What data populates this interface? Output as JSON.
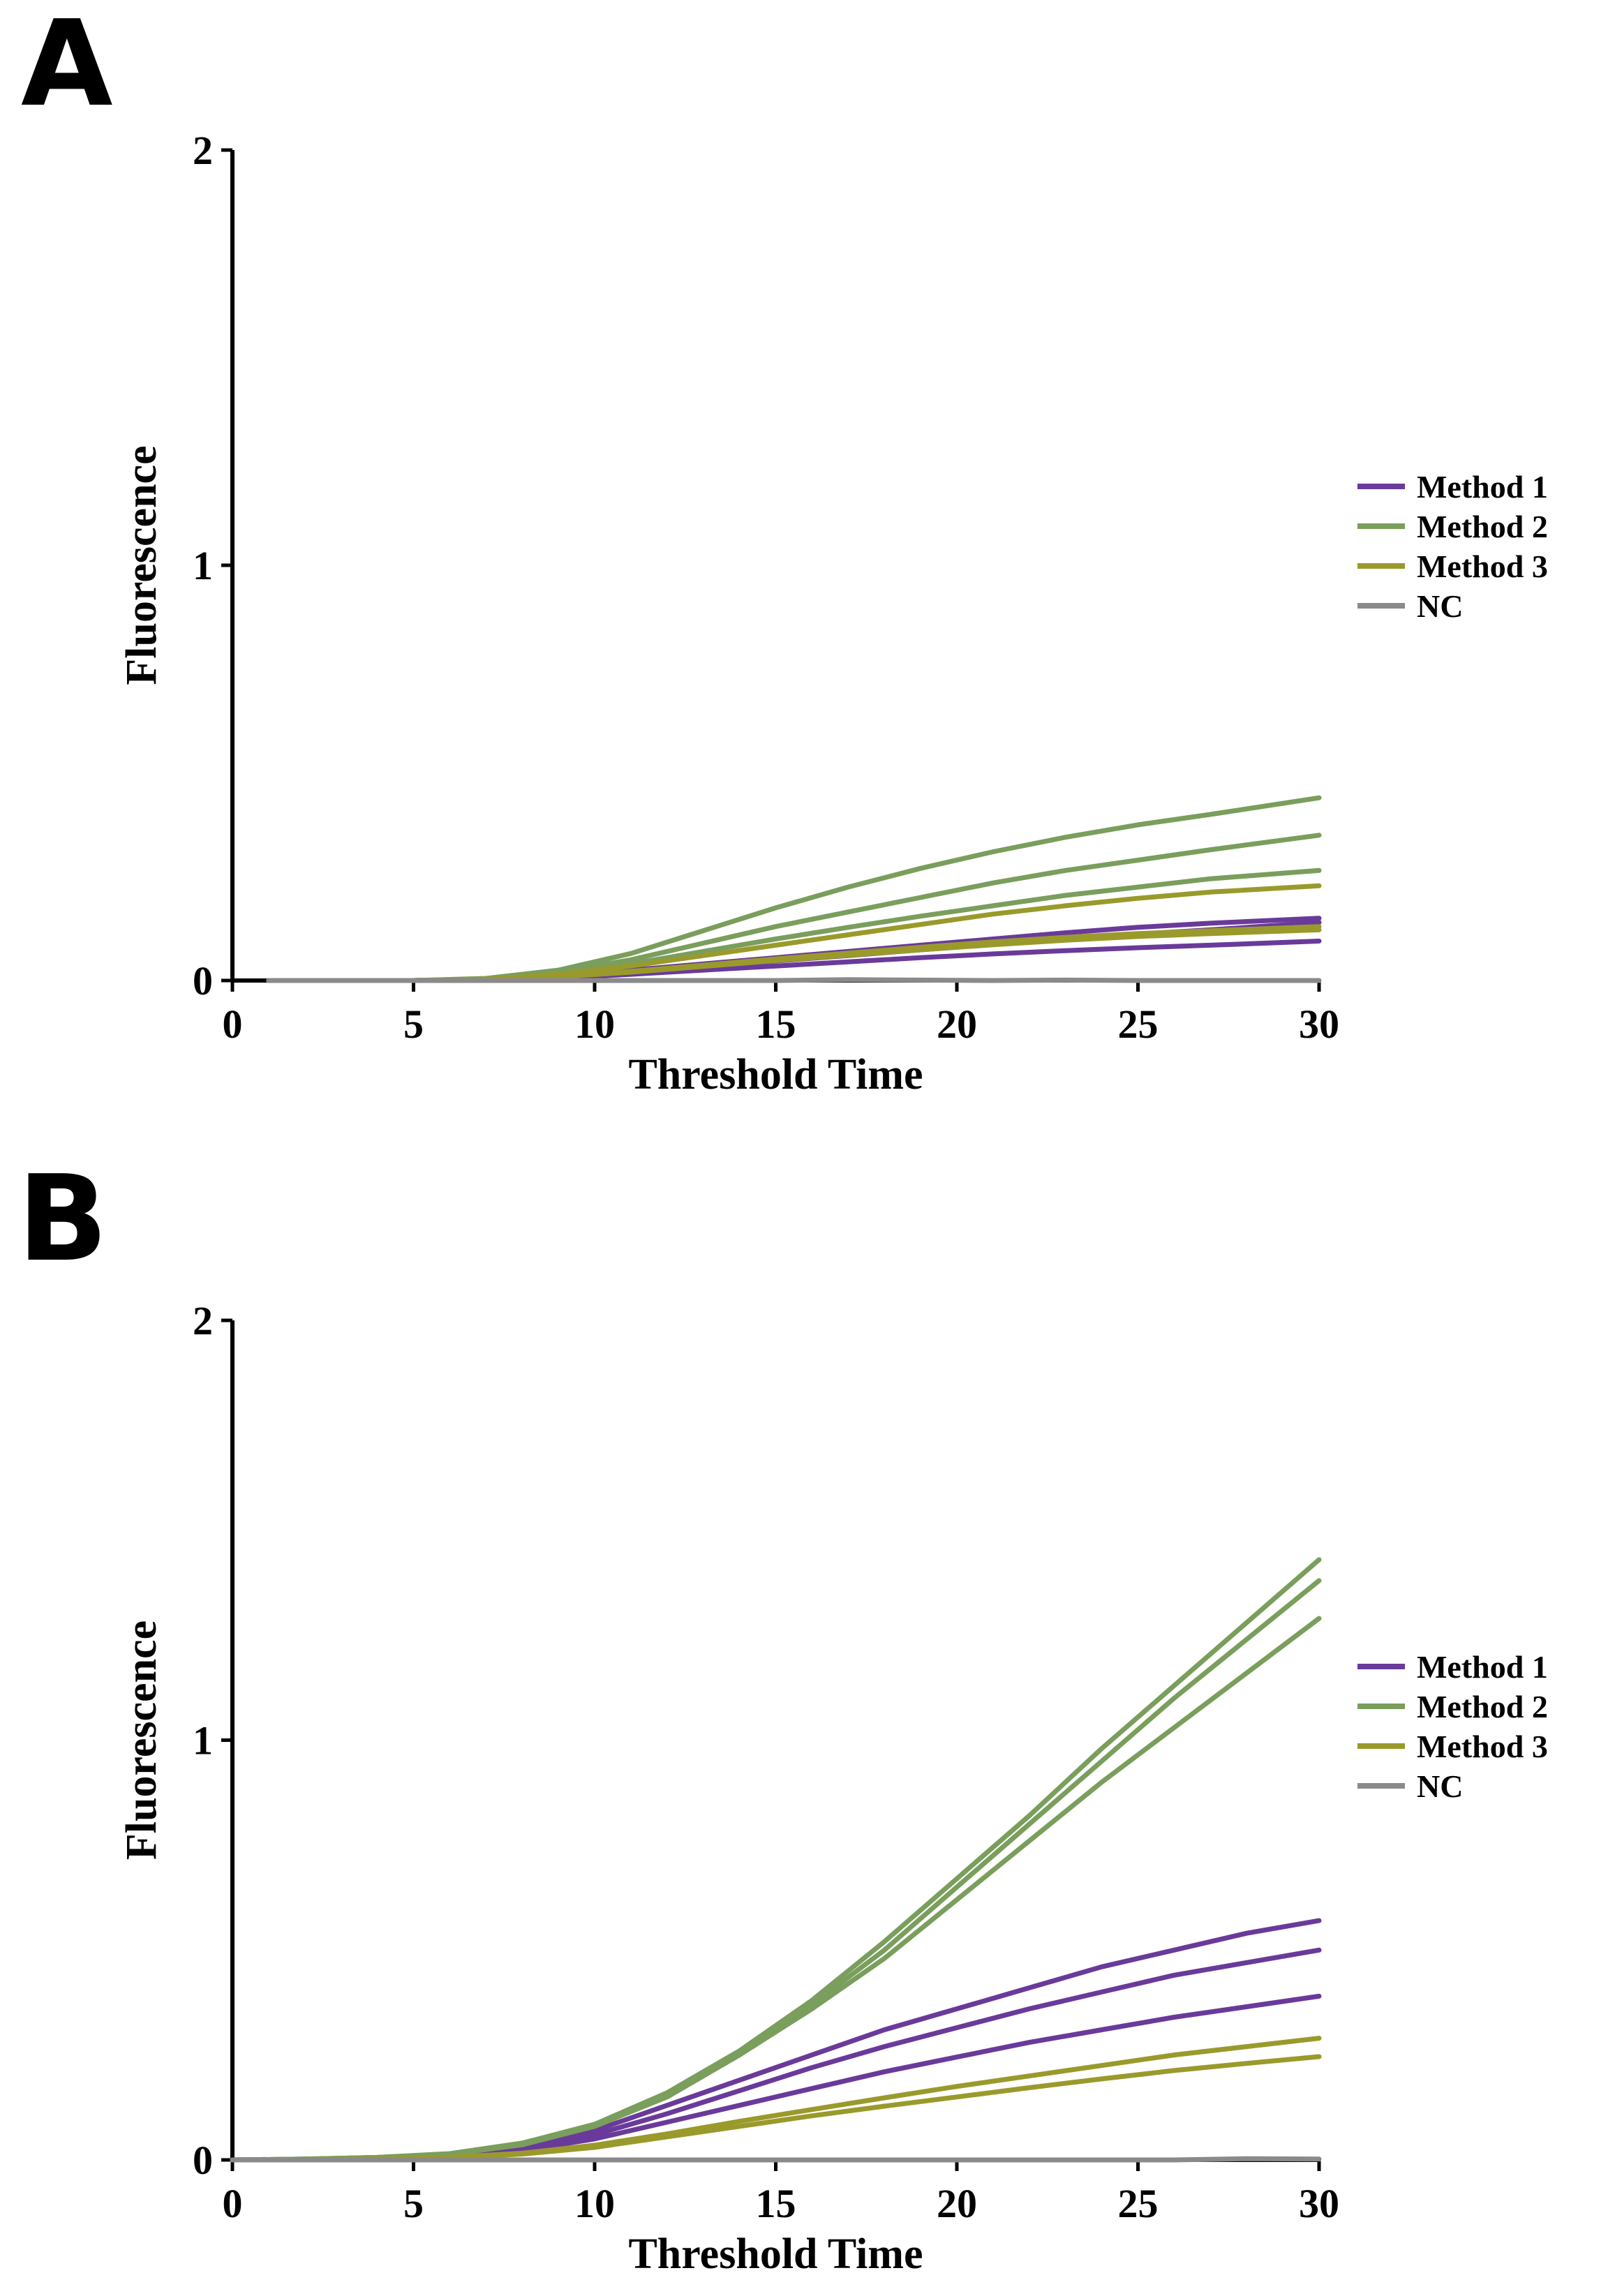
{
  "chart_data": [
    {
      "panel_label": "A",
      "type": "line",
      "xlabel": "Threshold Time",
      "ylabel": "Fluorescence",
      "xlim": [
        0,
        30
      ],
      "ylim": [
        0,
        2
      ],
      "xticks": [
        "0",
        "5",
        "10",
        "15",
        "20",
        "25",
        "30"
      ],
      "yticks": [
        "0",
        "1",
        "2"
      ],
      "legend": [
        {
          "name": "Method 1",
          "color": "#6a3a9a"
        },
        {
          "name": "Method 2",
          "color": "#7a9e5c"
        },
        {
          "name": "Method 3",
          "color": "#9a9a2c"
        },
        {
          "name": "NC",
          "color": "#8a8a8a"
        }
      ],
      "x": [
        1,
        3,
        5,
        7,
        9,
        11,
        13,
        15,
        17,
        19,
        21,
        23,
        25,
        27,
        30
      ],
      "series": [
        {
          "name": "Method 1",
          "color": "#6a3a9a",
          "values": [
            0,
            0,
            0,
            0.002,
            0.01,
            0.025,
            0.04,
            0.055,
            0.07,
            0.085,
            0.1,
            0.115,
            0.128,
            0.138,
            0.15
          ]
        },
        {
          "name": "Method 1",
          "color": "#6a3a9a",
          "values": [
            0,
            0,
            0,
            0.002,
            0.008,
            0.02,
            0.033,
            0.047,
            0.06,
            0.074,
            0.087,
            0.1,
            0.112,
            0.122,
            0.14
          ]
        },
        {
          "name": "Method 1",
          "color": "#6a3a9a",
          "values": [
            0,
            0,
            0,
            0.001,
            0.006,
            0.015,
            0.025,
            0.035,
            0.045,
            0.055,
            0.064,
            0.072,
            0.079,
            0.085,
            0.095
          ]
        },
        {
          "name": "Method 2",
          "color": "#7a9e5c",
          "values": [
            0,
            0,
            0,
            0.005,
            0.025,
            0.065,
            0.12,
            0.175,
            0.225,
            0.27,
            0.31,
            0.345,
            0.375,
            0.4,
            0.44
          ]
        },
        {
          "name": "Method 2",
          "color": "#7a9e5c",
          "values": [
            0,
            0,
            0,
            0.004,
            0.02,
            0.05,
            0.09,
            0.13,
            0.165,
            0.2,
            0.235,
            0.265,
            0.29,
            0.315,
            0.35
          ]
        },
        {
          "name": "Method 2",
          "color": "#7a9e5c",
          "values": [
            0,
            0,
            0,
            0.003,
            0.015,
            0.04,
            0.07,
            0.1,
            0.128,
            0.155,
            0.18,
            0.205,
            0.225,
            0.245,
            0.265
          ]
        },
        {
          "name": "Method 3",
          "color": "#9a9a2c",
          "values": [
            0,
            0,
            0,
            0.003,
            0.015,
            0.035,
            0.06,
            0.085,
            0.11,
            0.135,
            0.16,
            0.18,
            0.198,
            0.213,
            0.228
          ]
        },
        {
          "name": "Method 3",
          "color": "#9a9a2c",
          "values": [
            0,
            0,
            0,
            0.002,
            0.01,
            0.022,
            0.037,
            0.052,
            0.066,
            0.08,
            0.093,
            0.104,
            0.113,
            0.12,
            0.13
          ]
        },
        {
          "name": "Method 3",
          "color": "#9a9a2c",
          "values": [
            0,
            0,
            0,
            0.002,
            0.009,
            0.02,
            0.034,
            0.048,
            0.061,
            0.074,
            0.086,
            0.097,
            0.106,
            0.113,
            0.122
          ]
        },
        {
          "name": "NC",
          "color": "#8a8a8a",
          "values": [
            0,
            0,
            0,
            0,
            0,
            0,
            0,
            0,
            0.002,
            0.001,
            0,
            0.001,
            0,
            0,
            0
          ]
        }
      ]
    },
    {
      "panel_label": "B",
      "type": "line",
      "xlabel": "Threshold Time",
      "ylabel": "Fluorescence",
      "xlim": [
        0,
        30
      ],
      "ylim": [
        0,
        2
      ],
      "xticks": [
        "0",
        "5",
        "10",
        "15",
        "20",
        "25",
        "30"
      ],
      "yticks": [
        "0",
        "1",
        "2"
      ],
      "legend": [
        {
          "name": "Method 1",
          "color": "#6a3a9a"
        },
        {
          "name": "Method 2",
          "color": "#7a9e5c"
        },
        {
          "name": "Method 3",
          "color": "#9a9a2c"
        },
        {
          "name": "NC",
          "color": "#8a8a8a"
        }
      ],
      "x": [
        0,
        2,
        4,
        6,
        8,
        10,
        12,
        14,
        16,
        18,
        20,
        22,
        24,
        26,
        28,
        30
      ],
      "series": [
        {
          "name": "Method 1",
          "color": "#6a3a9a",
          "values": [
            0,
            0.001,
            0.004,
            0.01,
            0.03,
            0.07,
            0.13,
            0.19,
            0.25,
            0.31,
            0.36,
            0.41,
            0.46,
            0.5,
            0.54,
            0.57
          ]
        },
        {
          "name": "Method 1",
          "color": "#6a3a9a",
          "values": [
            0,
            0.001,
            0.003,
            0.009,
            0.027,
            0.06,
            0.11,
            0.165,
            0.22,
            0.27,
            0.315,
            0.36,
            0.4,
            0.44,
            0.47,
            0.5
          ]
        },
        {
          "name": "Method 1",
          "color": "#6a3a9a",
          "values": [
            0,
            0.001,
            0.003,
            0.008,
            0.022,
            0.05,
            0.09,
            0.13,
            0.17,
            0.21,
            0.245,
            0.28,
            0.31,
            0.34,
            0.365,
            0.39
          ]
        },
        {
          "name": "Method 2",
          "color": "#7a9e5c",
          "values": [
            0,
            0.002,
            0.006,
            0.015,
            0.04,
            0.085,
            0.16,
            0.26,
            0.38,
            0.52,
            0.67,
            0.82,
            0.98,
            1.13,
            1.28,
            1.43
          ]
        },
        {
          "name": "Method 2",
          "color": "#7a9e5c",
          "values": [
            0,
            0.002,
            0.006,
            0.014,
            0.038,
            0.082,
            0.155,
            0.255,
            0.37,
            0.5,
            0.65,
            0.8,
            0.95,
            1.1,
            1.24,
            1.38
          ]
        },
        {
          "name": "Method 2",
          "color": "#7a9e5c",
          "values": [
            0,
            0.002,
            0.005,
            0.013,
            0.036,
            0.08,
            0.15,
            0.25,
            0.36,
            0.48,
            0.62,
            0.76,
            0.9,
            1.03,
            1.16,
            1.29
          ]
        },
        {
          "name": "Method 3",
          "color": "#9a9a2c",
          "values": [
            0,
            0.001,
            0.002,
            0.006,
            0.016,
            0.035,
            0.062,
            0.092,
            0.12,
            0.148,
            0.175,
            0.2,
            0.225,
            0.25,
            0.27,
            0.29
          ]
        },
        {
          "name": "Method 3",
          "color": "#9a9a2c",
          "values": [
            0,
            0.001,
            0.002,
            0.005,
            0.014,
            0.03,
            0.055,
            0.08,
            0.105,
            0.128,
            0.15,
            0.172,
            0.193,
            0.213,
            0.23,
            0.246
          ]
        },
        {
          "name": "NC",
          "color": "#8a8a8a",
          "values": [
            0,
            0,
            0,
            0,
            0,
            0,
            0,
            0,
            0,
            0,
            0,
            0,
            0,
            0,
            0.003,
            0.002
          ]
        }
      ]
    }
  ]
}
